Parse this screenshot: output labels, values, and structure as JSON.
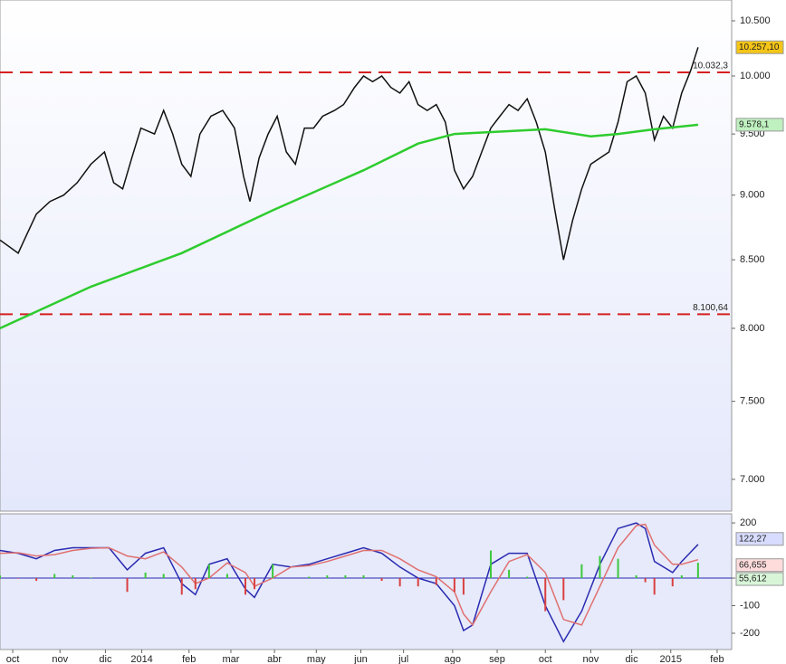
{
  "chart_data": [
    {
      "type": "price",
      "log_scale": true,
      "xlim": [
        0,
        805
      ],
      "ylim": [
        6806,
        10695
      ],
      "yticks": [
        {
          "value": 10500,
          "label": "10.500"
        },
        {
          "value": 10000,
          "label": "10.000"
        },
        {
          "value": 9500,
          "label": "9.500"
        },
        {
          "value": 9000,
          "label": "9.000"
        },
        {
          "value": 8500,
          "label": "8.500"
        },
        {
          "value": 8000,
          "label": "8.000"
        },
        {
          "value": 7500,
          "label": "7.500"
        },
        {
          "value": 7000,
          "label": "7.000"
        }
      ],
      "hlines": [
        {
          "value": 10032.3,
          "label": "10.032,3"
        },
        {
          "value": 8100.64,
          "label": "8.100,64"
        }
      ],
      "hline_color": "#d62020",
      "series": [
        {
          "color": "#111111",
          "last_label": "10.257,10",
          "tag_color": "#f5c518",
          "x": [
            0,
            20,
            30,
            40,
            55,
            70,
            85,
            100,
            115,
            125,
            135,
            145,
            155,
            170,
            180,
            190,
            200,
            210,
            220,
            232,
            245,
            258,
            268,
            275,
            285,
            295,
            305,
            315,
            325,
            335,
            345,
            355,
            368,
            378,
            390,
            400,
            410,
            420,
            430,
            440,
            450,
            460,
            470,
            480,
            490,
            500,
            510,
            520,
            530,
            540,
            550,
            560,
            570,
            580,
            590,
            600,
            610,
            620,
            630,
            640,
            650,
            660,
            670,
            680,
            690,
            700,
            710,
            720,
            730,
            740,
            750,
            760,
            768
          ],
          "values": [
            8650,
            8550,
            8700,
            8850,
            8950,
            9000,
            9100,
            9250,
            9350,
            9100,
            9050,
            9300,
            9550,
            9500,
            9700,
            9500,
            9250,
            9150,
            9500,
            9650,
            9700,
            9550,
            9150,
            8950,
            9300,
            9500,
            9650,
            9350,
            9250,
            9550,
            9550,
            9650,
            9700,
            9750,
            9900,
            10000,
            9950,
            10000,
            9900,
            9850,
            9950,
            9750,
            9700,
            9750,
            9600,
            9200,
            9050,
            9150,
            9350,
            9550,
            9650,
            9750,
            9700,
            9800,
            9600,
            9350,
            8900,
            8500,
            8800,
            9050,
            9250,
            9300,
            9350,
            9600,
            9950,
            10000,
            9850,
            9450,
            9650,
            9550,
            9850,
            10050,
            10257.1
          ]
        },
        {
          "color": "#2ecc2e",
          "last_label": "9.578,1",
          "tag_color": "#bff0bf",
          "x": [
            0,
            100,
            200,
            300,
            400,
            460,
            500,
            550,
            600,
            650,
            680,
            720,
            768
          ],
          "values": [
            8000,
            8300,
            8550,
            8880,
            9200,
            9420,
            9500,
            9520,
            9540,
            9480,
            9500,
            9540,
            9578.1
          ]
        }
      ]
    },
    {
      "type": "oscillator",
      "xlim": [
        0,
        805
      ],
      "ylim": [
        -259,
        233
      ],
      "yticks": [
        200,
        0,
        -100,
        -200
      ],
      "xticks": [
        {
          "value": 14,
          "label": "oct"
        },
        {
          "value": 66,
          "label": "nov"
        },
        {
          "value": 116,
          "label": "dic"
        },
        {
          "value": 156,
          "label": "2014"
        },
        {
          "value": 208,
          "label": "feb"
        },
        {
          "value": 254,
          "label": "mar"
        },
        {
          "value": 302,
          "label": "abr"
        },
        {
          "value": 348,
          "label": "may"
        },
        {
          "value": 397,
          "label": "jun"
        },
        {
          "value": 444,
          "label": "jul"
        },
        {
          "value": 498,
          "label": "ago"
        },
        {
          "value": 547,
          "label": "sep"
        },
        {
          "value": 600,
          "label": "oct"
        },
        {
          "value": 650,
          "label": "nov"
        },
        {
          "value": 695,
          "label": "dic"
        },
        {
          "value": 738,
          "label": "2015"
        },
        {
          "value": 789,
          "label": "feb"
        }
      ],
      "x": [
        0,
        20,
        40,
        60,
        80,
        100,
        120,
        140,
        160,
        180,
        200,
        215,
        230,
        250,
        270,
        280,
        300,
        320,
        340,
        360,
        380,
        400,
        420,
        440,
        460,
        480,
        500,
        510,
        520,
        540,
        560,
        580,
        600,
        620,
        640,
        660,
        680,
        700,
        710,
        720,
        740,
        750,
        768
      ],
      "positive_color": "#3cc83c",
      "negative_color": "#d94040",
      "series": [
        {
          "color": "#2a2ab0",
          "last_label": "122,27",
          "tag_color": "#d8dcff",
          "values": [
            100,
            90,
            70,
            100,
            110,
            110,
            110,
            30,
            90,
            110,
            -20,
            -60,
            50,
            70,
            -40,
            -70,
            50,
            40,
            50,
            70,
            90,
            110,
            90,
            40,
            0,
            -20,
            -100,
            -190,
            -170,
            50,
            90,
            90,
            -100,
            -230,
            -120,
            50,
            180,
            200,
            180,
            60,
            20,
            60,
            122.27
          ]
        },
        {
          "color": "#e07070",
          "last_label": "66,655",
          "tag_color": "#ffdcdc",
          "values": [
            90,
            92,
            80,
            85,
            100,
            108,
            110,
            80,
            70,
            95,
            40,
            -20,
            0,
            55,
            20,
            -30,
            0,
            40,
            45,
            60,
            80,
            100,
            100,
            70,
            30,
            5,
            -50,
            -130,
            -170,
            -50,
            60,
            85,
            20,
            -150,
            -170,
            -30,
            110,
            190,
            195,
            120,
            50,
            50,
            66.655
          ]
        },
        {
          "type": "histogram",
          "last_label": "55,612",
          "tag_color": "#d8f5d8",
          "values": [
            10,
            -2,
            -10,
            15,
            10,
            2,
            0,
            -50,
            20,
            15,
            -60,
            -40,
            50,
            15,
            -60,
            -40,
            50,
            0,
            5,
            10,
            10,
            10,
            -10,
            -30,
            -30,
            -25,
            -50,
            -60,
            0,
            100,
            30,
            5,
            -120,
            -80,
            50,
            80,
            70,
            10,
            -15,
            -60,
            -30,
            10,
            55.612
          ]
        }
      ]
    }
  ]
}
